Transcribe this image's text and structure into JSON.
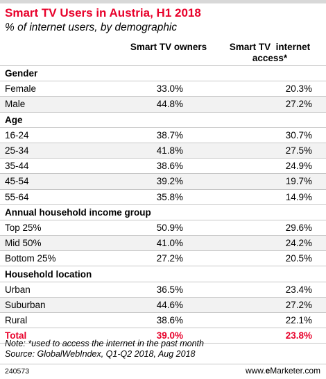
{
  "title": "Smart TV Users in Austria, H1 2018",
  "subtitle": "% of internet users, by demographic",
  "colors": {
    "accent": "#e8002a",
    "band": "#f2f2f2",
    "rule": "#c7c7c7"
  },
  "chart_data": {
    "type": "table",
    "title": "Smart TV Users in Austria, H1 2018",
    "subtitle": "% of internet users, by demographic",
    "columns": [
      "Smart TV owners",
      "Smart TV  internet access*"
    ],
    "sections": [
      {
        "name": "Gender",
        "rows": [
          {
            "label": "Female",
            "values": [
              "33.0%",
              "20.3%"
            ]
          },
          {
            "label": "Male",
            "values": [
              "44.8%",
              "27.2%"
            ]
          }
        ]
      },
      {
        "name": "Age",
        "rows": [
          {
            "label": "16-24",
            "values": [
              "38.7%",
              "30.7%"
            ]
          },
          {
            "label": "25-34",
            "values": [
              "41.8%",
              "27.5%"
            ]
          },
          {
            "label": "35-44",
            "values": [
              "38.6%",
              "24.9%"
            ]
          },
          {
            "label": "45-54",
            "values": [
              "39.2%",
              "19.7%"
            ]
          },
          {
            "label": "55-64",
            "values": [
              "35.8%",
              "14.9%"
            ]
          }
        ]
      },
      {
        "name": "Annual household income group",
        "rows": [
          {
            "label": "Top 25%",
            "values": [
              "50.9%",
              "29.6%"
            ]
          },
          {
            "label": "Mid 50%",
            "values": [
              "41.0%",
              "24.2%"
            ]
          },
          {
            "label": "Bottom 25%",
            "values": [
              "27.2%",
              "20.5%"
            ]
          }
        ]
      },
      {
        "name": "Household location",
        "rows": [
          {
            "label": "Urban",
            "values": [
              "36.5%",
              "23.4%"
            ]
          },
          {
            "label": "Suburban",
            "values": [
              "44.6%",
              "27.2%"
            ]
          },
          {
            "label": "Rural",
            "values": [
              "38.6%",
              "22.1%"
            ]
          }
        ]
      }
    ],
    "total": {
      "label": "Total",
      "values": [
        "39.0%",
        "23.8%"
      ]
    }
  },
  "note": "Note: *used to access the internet in the past month",
  "source": "Source: GlobalWebIndex, Q1-Q2 2018, Aug 2018",
  "footer_id": "240573",
  "brand": {
    "prefix": "www.",
    "e": "e",
    "rest": "Marketer",
    "suffix": ".com"
  }
}
